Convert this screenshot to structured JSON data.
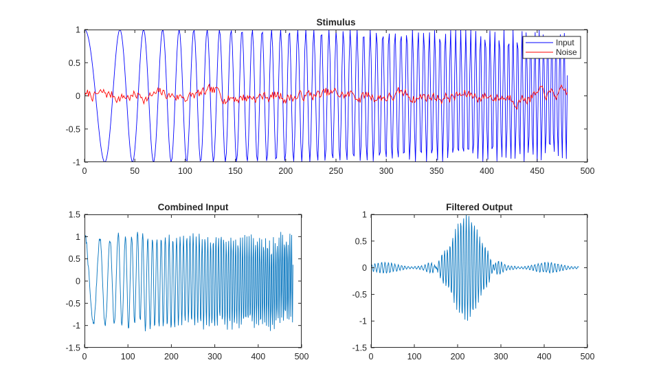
{
  "chart_data": [
    {
      "id": "stimulus",
      "type": "line",
      "title": "Stimulus",
      "xlabel": "",
      "ylabel": "",
      "xlim": [
        0,
        500
      ],
      "ylim": [
        -1,
        1
      ],
      "xticks": [
        0,
        50,
        100,
        150,
        200,
        250,
        300,
        350,
        400,
        450,
        500
      ],
      "yticks": [
        -1,
        -0.5,
        0,
        0.5,
        1
      ],
      "grid": false,
      "legend_position": "top-right",
      "signal_length": 481,
      "series": [
        {
          "name": "Input",
          "color": "#0000ff",
          "description_values": "linear chirp cos(2*pi*f(n)*n), amplitude 1, frequency rising from ~0.02 to ~0.25 cycles/sample over n=0..480",
          "amplitude": 1,
          "f0": 0.02,
          "f1": 0.25
        },
        {
          "name": "Noise",
          "color": "#ff0000",
          "description_values": "random noise around 0, amplitude within about ±0.2",
          "amplitude": 0.2
        }
      ]
    },
    {
      "id": "combined",
      "type": "line",
      "title": "Combined Input",
      "xlabel": "",
      "ylabel": "",
      "xlim": [
        0,
        500
      ],
      "ylim": [
        -1.5,
        1.5
      ],
      "xticks": [
        0,
        100,
        200,
        300,
        400,
        500
      ],
      "yticks": [
        -1.5,
        -1,
        -0.5,
        0,
        0.5,
        1,
        1.5
      ],
      "grid": false,
      "series": [
        {
          "name": "",
          "color": "#0072bd",
          "source": "Input + Noise"
        }
      ]
    },
    {
      "id": "filtered",
      "type": "line",
      "title": "Filtered Output",
      "xlabel": "",
      "ylabel": "",
      "xlim": [
        0,
        500
      ],
      "ylim": [
        -1.5,
        1
      ],
      "xticks": [
        0,
        100,
        200,
        300,
        400,
        500
      ],
      "yticks": [
        -1.5,
        -1,
        -0.5,
        0,
        0.5,
        1
      ],
      "grid": false,
      "series": [
        {
          "name": "",
          "color": "#0072bd",
          "description_values": "band-pass output: envelope peaks ~1 near n=220, spanning ~n=160..280; small residual oscillation ~±0.1 elsewhere",
          "peak_center": 220,
          "peak_amplitude": 1.0,
          "residual_amplitude": 0.1
        }
      ]
    }
  ]
}
